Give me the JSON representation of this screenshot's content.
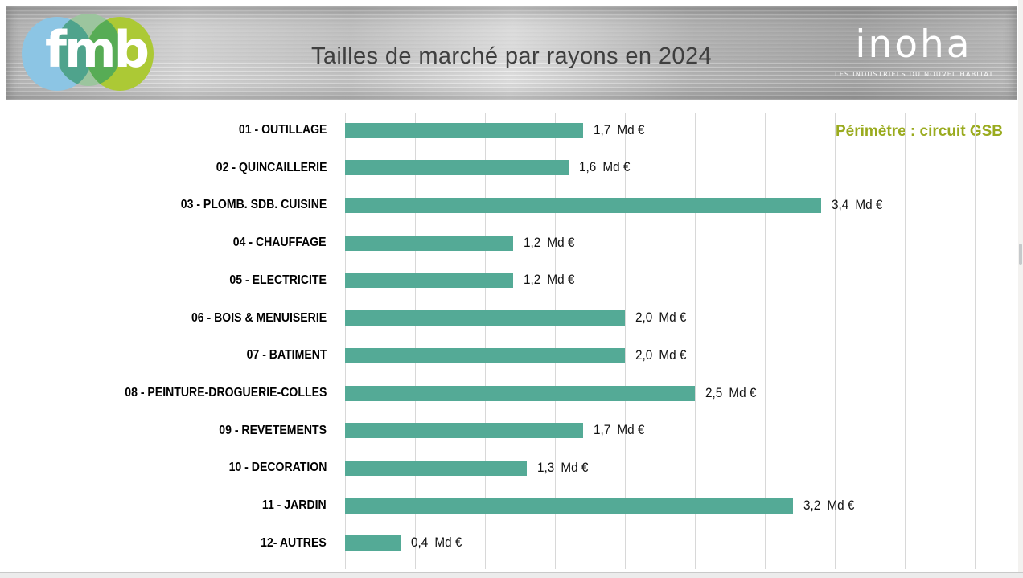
{
  "header": {
    "fmb_logo": {
      "text": "fmb",
      "colors": {
        "blue": "#8CC5E4",
        "sage": "#9CC59E",
        "teal": "#4FA38C",
        "lime": "#ACC935",
        "green": "#57AC55"
      }
    },
    "inoha_logo": {
      "text": "inoha",
      "tagline": "LES INDUSTRIELS DU NOUVEL HABITAT"
    }
  },
  "chart_data": {
    "type": "bar",
    "orientation": "horizontal",
    "title": "Tailles de marché par rayons en 2024",
    "annotation": "Périmètre : circuit GSB",
    "unit": "Md €",
    "categories": [
      "01 - OUTILLAGE",
      "02 - QUINCAILLERIE",
      "03 - PLOMB. SDB. CUISINE",
      "04 - CHAUFFAGE",
      "05 - ELECTRICITE",
      "06 - BOIS & MENUISERIE",
      "07 - BATIMENT",
      "08 - PEINTURE-DROGUERIE-COLLES",
      "09 - REVETEMENTS",
      "10 - DECORATION",
      "11 - JARDIN",
      "12- AUTRES"
    ],
    "values": [
      1.7,
      1.6,
      3.4,
      1.2,
      1.2,
      2.0,
      2.0,
      2.5,
      1.7,
      1.3,
      3.2,
      0.4
    ],
    "value_labels": [
      "1,7",
      "1,6",
      "3,4",
      "1,2",
      "1,2",
      "2,0",
      "2,0",
      "2,5",
      "1,7",
      "1,3",
      "3,2",
      "0,4"
    ],
    "xlim": [
      0,
      4.5
    ],
    "gridline_step": 0.5,
    "grid": true,
    "legend": false,
    "bar_color": "#54AA96",
    "gridline_color": "#D8D8D8",
    "annotation_color": "#9AAB1F",
    "title_color": "#3F3F3F"
  }
}
